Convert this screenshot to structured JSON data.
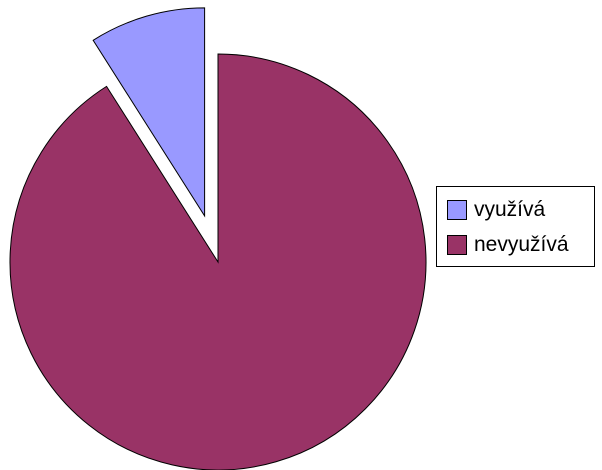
{
  "chart_data": {
    "type": "pie",
    "slices": [
      {
        "label": "využívá",
        "value": 9,
        "color": "#9999ff",
        "exploded": true
      },
      {
        "label": "nevyužívá",
        "value": 91,
        "color": "#993366",
        "exploded": false
      }
    ],
    "title": "",
    "legend_position": "right"
  }
}
